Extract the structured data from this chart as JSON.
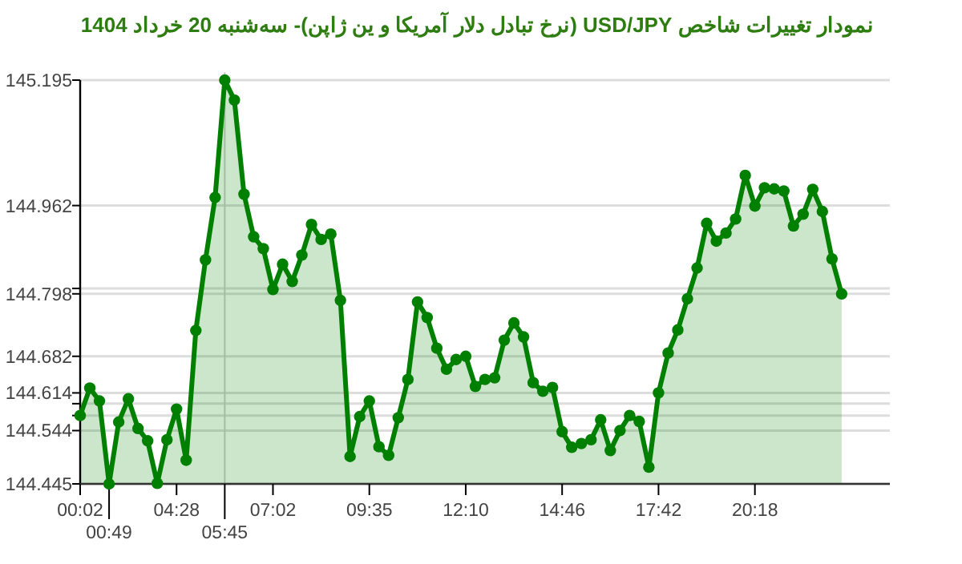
{
  "chart_data": {
    "type": "area",
    "title": "نمودار تغییرات شاخص USD/JPY (نرخ تبادل دلار آمریکا و ین ژاپن)- سه‌شنبه  20 خرداد 1404",
    "categories": [
      "00:02",
      null,
      null,
      "00:49",
      null,
      null,
      null,
      null,
      null,
      null,
      "04:28",
      null,
      null,
      null,
      null,
      "05:45",
      null,
      null,
      null,
      null,
      "07:02",
      null,
      null,
      null,
      null,
      null,
      null,
      null,
      null,
      null,
      "09:35",
      null,
      null,
      null,
      null,
      null,
      null,
      null,
      null,
      null,
      "12:10",
      null,
      null,
      null,
      null,
      null,
      null,
      null,
      null,
      null,
      "14:46",
      null,
      null,
      null,
      null,
      null,
      null,
      null,
      null,
      null,
      "17:42",
      null,
      null,
      null,
      null,
      null,
      null,
      null,
      null,
      null,
      "20:18",
      null,
      null,
      null,
      null,
      null,
      null,
      null,
      null,
      null
    ],
    "values": [
      144.572,
      144.623,
      144.599,
      144.445,
      144.56,
      144.603,
      144.548,
      144.525,
      144.446,
      144.527,
      144.584,
      144.489,
      144.73,
      144.861,
      144.977,
      145.195,
      145.158,
      144.983,
      144.904,
      144.882,
      144.806,
      144.853,
      144.821,
      144.87,
      144.927,
      144.899,
      144.909,
      144.786,
      144.496,
      144.57,
      144.599,
      144.514,
      144.498,
      144.568,
      144.639,
      144.783,
      144.754,
      144.697,
      144.658,
      144.676,
      144.682,
      144.626,
      144.639,
      144.642,
      144.712,
      144.744,
      144.718,
      144.633,
      144.617,
      144.624,
      144.542,
      144.513,
      144.52,
      144.527,
      144.564,
      144.507,
      144.544,
      144.572,
      144.561,
      144.476,
      144.614,
      144.688,
      144.731,
      144.789,
      144.846,
      144.929,
      144.896,
      144.911,
      144.937,
      145.018,
      144.961,
      144.995,
      144.993,
      144.989,
      144.924,
      144.946,
      144.992,
      144.951,
      144.863,
      144.798
    ],
    "color": "#008000",
    "ylim": [
      144.445,
      145.195
    ],
    "yticks": [
      145.195,
      144.962,
      {
        "value": 144.808,
        "label": null
      },
      144.798,
      144.682,
      144.614,
      {
        "value": 144.594,
        "label": null
      },
      {
        "value": 144.572,
        "label": null
      },
      144.544,
      144.445
    ],
    "grid": "y",
    "marker": "circle",
    "ref_lines": [
      {
        "axis": "x",
        "value": "05:45",
        "color": "#cccccc"
      }
    ]
  }
}
